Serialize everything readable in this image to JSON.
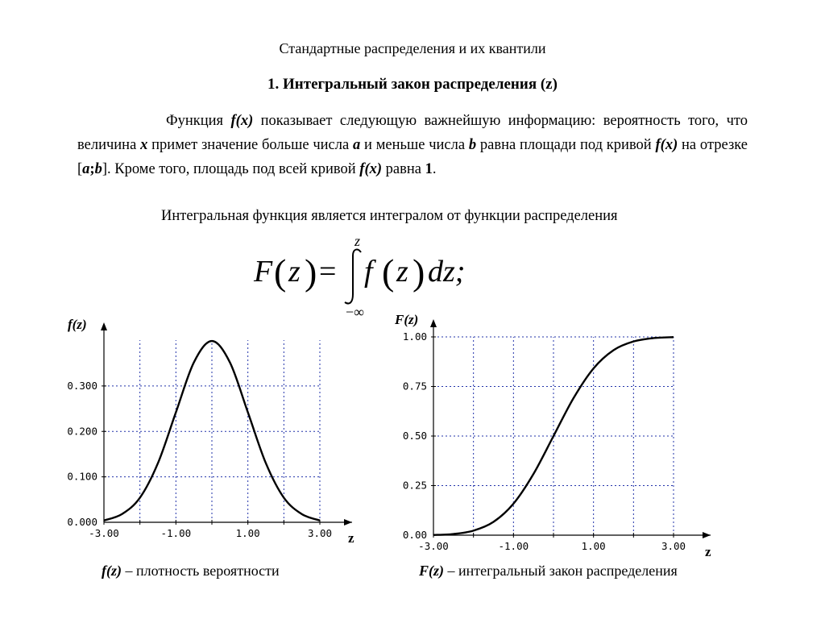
{
  "title": "Стандартные распределения и их квантили",
  "heading": "1. Интегральный закон распределения (z)",
  "paragraph": {
    "p1": "Функция ",
    "fx1": "f(x)",
    "p2": " показывает следующую важнейшую информацию: вероятность того, что величина ",
    "x": "x",
    "p3": " примет значение больше числа ",
    "a": "a",
    "p4": " и меньше числа ",
    "b": "b",
    "p5": " равна площади под кривой ",
    "fx2": "f(x)",
    "p6": " на отрезке [",
    "a2": "a",
    "semi": ";",
    "b2": "b",
    "p7": "]. Кроме того, площадь под всей кривой ",
    "fx3": "f(x)",
    "p8": " равна ",
    "one": "1",
    "p9": "."
  },
  "paragraph2": "Интегральная функция является интегралом от функции распределения",
  "formula": {
    "lhs_F": "F",
    "lhs_z": "z",
    "equals": "=",
    "upper": "z",
    "lower": "−∞",
    "integrand_f": "f",
    "integrand_z": "z",
    "dz": "dz;"
  },
  "chart_data": [
    {
      "type": "line",
      "ylabel": "f(z)",
      "xlabel": "z",
      "xlim": [
        -3.0,
        3.0
      ],
      "ylim": [
        0.0,
        0.4
      ],
      "x_ticks": [
        "-3.00",
        "-1.00",
        "1.00",
        "3.00"
      ],
      "y_ticks": [
        "0.000",
        "0.100",
        "0.200",
        "0.300"
      ],
      "grid": true,
      "series": [
        {
          "x": [
            -3.0,
            -2.5,
            -2.0,
            -1.5,
            -1.0,
            -0.5,
            0.0,
            0.5,
            1.0,
            1.5,
            2.0,
            2.5,
            3.0
          ],
          "y": [
            0.004,
            0.018,
            0.054,
            0.13,
            0.242,
            0.352,
            0.399,
            0.352,
            0.242,
            0.13,
            0.054,
            0.018,
            0.004
          ]
        }
      ]
    },
    {
      "type": "line",
      "ylabel": "F(z)",
      "xlabel": "z",
      "xlim": [
        -3.0,
        3.0
      ],
      "ylim": [
        0.0,
        1.0
      ],
      "x_ticks": [
        "-3.00",
        "-1.00",
        "1.00",
        "3.00"
      ],
      "y_ticks": [
        "0.00",
        "0.25",
        "0.50",
        "0.75",
        "1.00"
      ],
      "grid": true,
      "series": [
        {
          "x": [
            -3.0,
            -2.5,
            -2.0,
            -1.5,
            -1.0,
            -0.5,
            0.0,
            0.5,
            1.0,
            1.5,
            2.0,
            2.5,
            3.0
          ],
          "y": [
            0.001,
            0.006,
            0.023,
            0.067,
            0.159,
            0.309,
            0.5,
            0.691,
            0.841,
            0.933,
            0.977,
            0.994,
            0.999
          ]
        }
      ]
    }
  ],
  "captions": {
    "left_fz": "f(z)",
    "left_text": " – плотность вероятности",
    "right_Fz": "F(z)",
    "right_text": " – интегральный закон распределения"
  }
}
